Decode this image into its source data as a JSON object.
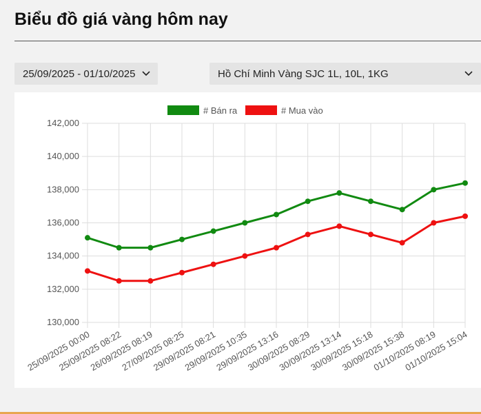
{
  "page": {
    "title": "Biểu đồ giá vàng hôm nay"
  },
  "filters": {
    "date_range": "25/09/2025 - 01/10/2025",
    "location_product": "Hồ Chí Minh Vàng SJC 1L, 10L, 1KG"
  },
  "colors": {
    "sell": "#118a11",
    "buy": "#ee1111",
    "grid": "#dddddd",
    "axis_text": "#555555"
  },
  "chart_data": {
    "type": "line",
    "title": "",
    "xlabel": "",
    "ylabel": "",
    "ylim": [
      130000,
      142000
    ],
    "yticks": [
      130000,
      132000,
      134000,
      136000,
      138000,
      140000,
      142000
    ],
    "ytick_labels": [
      "130,000",
      "132,000",
      "134,000",
      "136,000",
      "138,000",
      "140,000",
      "142,000"
    ],
    "legend_position": "top-center",
    "grid": true,
    "categories": [
      "25/09/2025 00:00",
      "25/09/2025 08:22",
      "26/09/2025 08:19",
      "27/09/2025 08:25",
      "29/09/2025 08:21",
      "29/09/2025 10:35",
      "29/09/2025 13:16",
      "30/09/2025 08:29",
      "30/09/2025 13:14",
      "30/09/2025 15:18",
      "30/09/2025 15:38",
      "01/10/2025 08:19",
      "01/10/2025 15:04"
    ],
    "series": [
      {
        "name": "# Bán ra",
        "color": "#118a11",
        "values": [
          135100,
          134500,
          134500,
          135000,
          135500,
          136000,
          136500,
          137300,
          137800,
          137300,
          136800,
          138000,
          138400
        ]
      },
      {
        "name": "# Mua vào",
        "color": "#ee1111",
        "values": [
          133100,
          132500,
          132500,
          133000,
          133500,
          134000,
          134500,
          135300,
          135800,
          135300,
          134800,
          136000,
          136400
        ]
      }
    ]
  }
}
